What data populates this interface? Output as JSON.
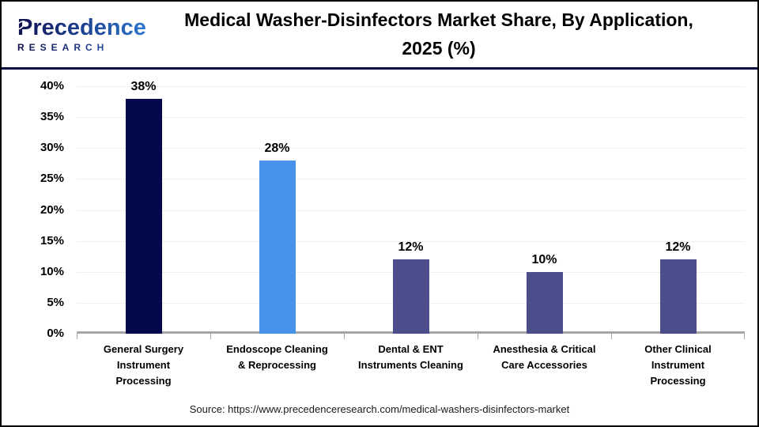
{
  "logo": {
    "name": "Precedence",
    "subtitle": "RESEARCH"
  },
  "header": {
    "title_line1": "Medical Washer-Disinfectors Market Share, By Application,",
    "title_line2": "2025 (%)"
  },
  "chart_data": {
    "type": "bar",
    "title": "Medical Washer-Disinfectors Market Share, By Application, 2025 (%)",
    "categories": [
      "General Surgery Instrument Processing",
      "Endoscope Cleaning & Reprocessing",
      "Dental & ENT Instruments Cleaning",
      "Anesthesia & Critical Care Accessories",
      "Other Clinical Instrument Processing"
    ],
    "category_lines": [
      [
        "General Surgery",
        "Instrument",
        "Processing"
      ],
      [
        "Endoscope Cleaning",
        "& Reprocessing"
      ],
      [
        "Dental & ENT",
        "Instruments Cleaning"
      ],
      [
        "Anesthesia & Critical",
        "Care Accessories"
      ],
      [
        "Other Clinical",
        "Instrument",
        "Processing"
      ]
    ],
    "values": [
      38,
      28,
      12,
      10,
      12
    ],
    "value_labels": [
      "38%",
      "28%",
      "12%",
      "10%",
      "12%"
    ],
    "bar_colors": [
      "#04094E",
      "#4793EB",
      "#4B4E8B",
      "#4B4E8B",
      "#4B4E8B"
    ],
    "xlabel": "",
    "ylabel": "",
    "ylim": [
      0,
      40
    ],
    "ytick_step": 5,
    "yticks": [
      "40%",
      "35%",
      "30%",
      "25%",
      "20%",
      "15%",
      "10%",
      "5%",
      "0%"
    ],
    "grid": true,
    "legend": false
  },
  "colors": {
    "header_divider": "#0A0B3F",
    "axis_line": "#A6A6A6",
    "gridline": "#EFEFEF",
    "brand_dark": "#12124E",
    "brand_blue": "#2F7FD6"
  },
  "source": {
    "text": "Source: https://www.precedenceresearch.com/medical-washers-disinfectors-market"
  }
}
